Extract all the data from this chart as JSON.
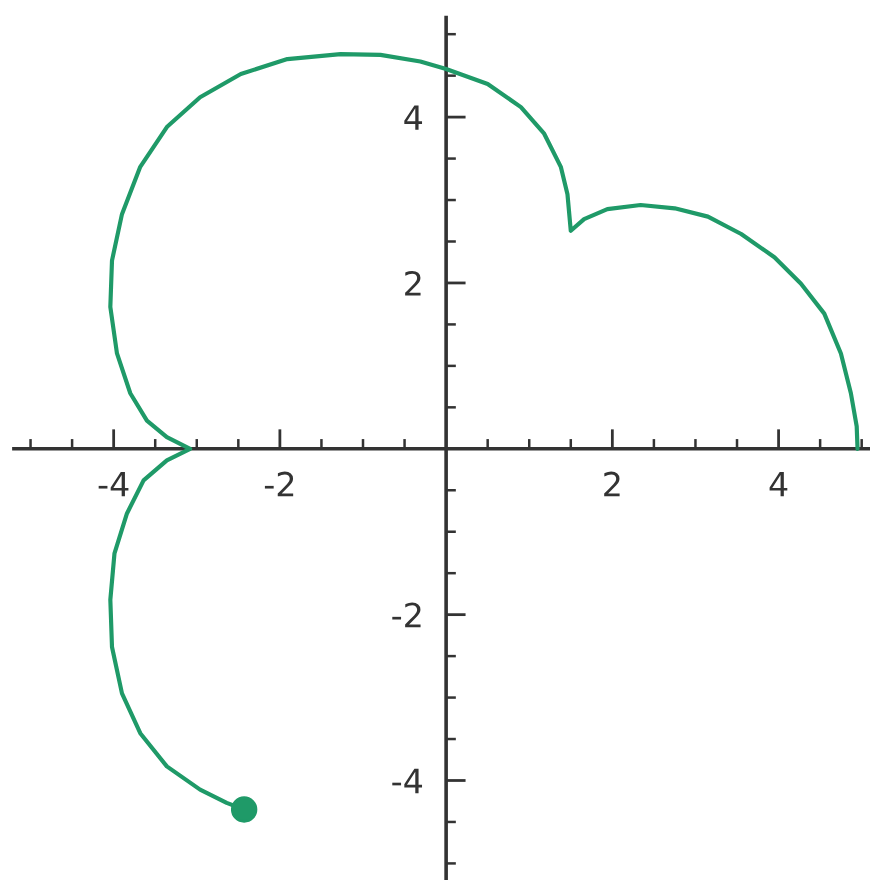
{
  "chart_data": {
    "type": "line",
    "series": [
      {
        "color": "#1f9a68",
        "marker": "none",
        "line_style": "solid",
        "x": [
          4.95,
          4.94,
          4.87,
          4.75,
          4.55,
          4.27,
          3.95,
          3.55,
          3.15,
          2.75,
          2.34,
          1.94,
          1.66,
          1.5,
          1.46,
          1.38,
          1.18,
          0.9,
          0.5,
          0.0,
          -0.31,
          -0.79,
          -1.27,
          -1.91,
          -2.47,
          -2.96,
          -3.36,
          -3.68,
          -3.9,
          -4.02,
          -4.04,
          -3.96,
          -3.8,
          -3.6,
          -3.36,
          -3.08,
          -3.36,
          -3.64,
          -3.84,
          -3.99,
          -4.04,
          -4.02,
          -3.9,
          -3.68,
          -3.36,
          -2.96,
          -2.64,
          -2.43
        ],
        "values": [
          0.0,
          0.27,
          0.67,
          1.15,
          1.63,
          1.99,
          2.31,
          2.59,
          2.8,
          2.9,
          2.94,
          2.89,
          2.77,
          2.63,
          3.07,
          3.4,
          3.8,
          4.12,
          4.4,
          4.58,
          4.67,
          4.75,
          4.76,
          4.7,
          4.52,
          4.24,
          3.88,
          3.4,
          2.83,
          2.27,
          1.71,
          1.15,
          0.67,
          0.34,
          0.14,
          0.0,
          -0.14,
          -0.38,
          -0.78,
          -1.26,
          -1.82,
          -2.39,
          -2.95,
          -3.43,
          -3.83,
          -4.11,
          -4.27,
          -4.35
        ]
      },
      {
        "type": "scatter",
        "color": "#1f9a68",
        "marker": "circle",
        "x": [
          -2.43
        ],
        "values": [
          -4.35
        ]
      }
    ],
    "xlim": [
      -5.2,
      5.1
    ],
    "ylim": [
      -5.2,
      5.2
    ],
    "xticks": [
      {
        "value": -5,
        "label": null
      },
      {
        "value": -4.5,
        "label": null
      },
      -4,
      {
        "value": -3.5,
        "label": null
      },
      {
        "value": -3,
        "label": null
      },
      {
        "value": -2.5,
        "label": null
      },
      -2,
      {
        "value": -1.5,
        "label": null
      },
      {
        "value": -1,
        "label": null
      },
      {
        "value": -0.5,
        "label": null
      },
      {
        "value": 0.5,
        "label": null
      },
      {
        "value": 1,
        "label": null
      },
      {
        "value": 1.5,
        "label": null
      },
      2,
      {
        "value": 2.5,
        "label": null
      },
      {
        "value": 3,
        "label": null
      },
      {
        "value": 3.5,
        "label": null
      },
      4,
      {
        "value": 4.5,
        "label": null
      },
      {
        "value": 5,
        "label": null
      }
    ],
    "yticks": [
      {
        "value": -5,
        "label": null
      },
      {
        "value": -4.5,
        "label": null
      },
      -4,
      {
        "value": -3.5,
        "label": null
      },
      {
        "value": -3,
        "label": null
      },
      {
        "value": -2.5,
        "label": null
      },
      -2,
      {
        "value": -1.5,
        "label": null
      },
      {
        "value": -1,
        "label": null
      },
      {
        "value": -0.5,
        "label": null
      },
      {
        "value": 0.5,
        "label": null
      },
      {
        "value": 1,
        "label": null
      },
      {
        "value": 1.5,
        "label": null
      },
      2,
      {
        "value": 2.5,
        "label": null
      },
      {
        "value": 3,
        "label": null
      },
      {
        "value": 3.5,
        "label": null
      },
      4,
      {
        "value": 4.5,
        "label": null
      },
      {
        "value": 5,
        "label": null
      }
    ]
  }
}
